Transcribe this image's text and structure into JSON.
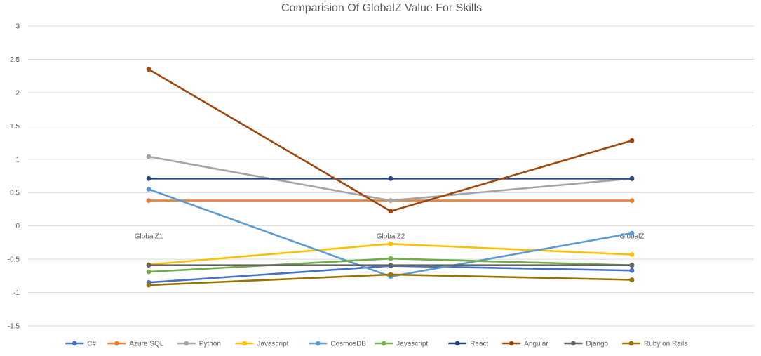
{
  "chart_data": {
    "type": "line",
    "title": "Comparision Of GlobalZ Value For Skills",
    "xlabel": "",
    "ylabel": "",
    "categories": [
      "GlobalZ1",
      "GlobalZ2",
      "GlobalZ"
    ],
    "ylim": [
      -1.5,
      3
    ],
    "yticks": [
      3,
      2.5,
      2,
      1.5,
      1,
      0.5,
      0,
      -0.5,
      -1,
      -1.5
    ],
    "grid": true,
    "legend_position": "bottom",
    "series": [
      {
        "name": "C#",
        "color": "#4472C4",
        "values": [
          -0.85,
          -0.6,
          -0.67
        ]
      },
      {
        "name": "Azure SQL",
        "color": "#ED7D31",
        "values": [
          0.38,
          0.38,
          0.38
        ]
      },
      {
        "name": "Python",
        "color": "#A5A5A5",
        "values": [
          1.04,
          0.38,
          0.71
        ]
      },
      {
        "name": "Javascript",
        "color": "#FFC000",
        "values": [
          -0.58,
          -0.27,
          -0.43
        ]
      },
      {
        "name": "CosmosDB",
        "color": "#5B9BD5",
        "values": [
          0.55,
          -0.76,
          -0.11
        ]
      },
      {
        "name": "Javascript",
        "color": "#70AD47",
        "values": [
          -0.69,
          -0.49,
          -0.59
        ]
      },
      {
        "name": "React",
        "color": "#264478",
        "values": [
          0.71,
          0.71,
          0.71
        ]
      },
      {
        "name": "Angular",
        "color": "#9E480E",
        "values": [
          2.35,
          0.22,
          1.28
        ]
      },
      {
        "name": "Django",
        "color": "#636363",
        "values": [
          -0.59,
          -0.59,
          -0.59
        ]
      },
      {
        "name": "Ruby on Rails",
        "color": "#997300",
        "values": [
          -0.89,
          -0.73,
          -0.81
        ]
      }
    ]
  }
}
